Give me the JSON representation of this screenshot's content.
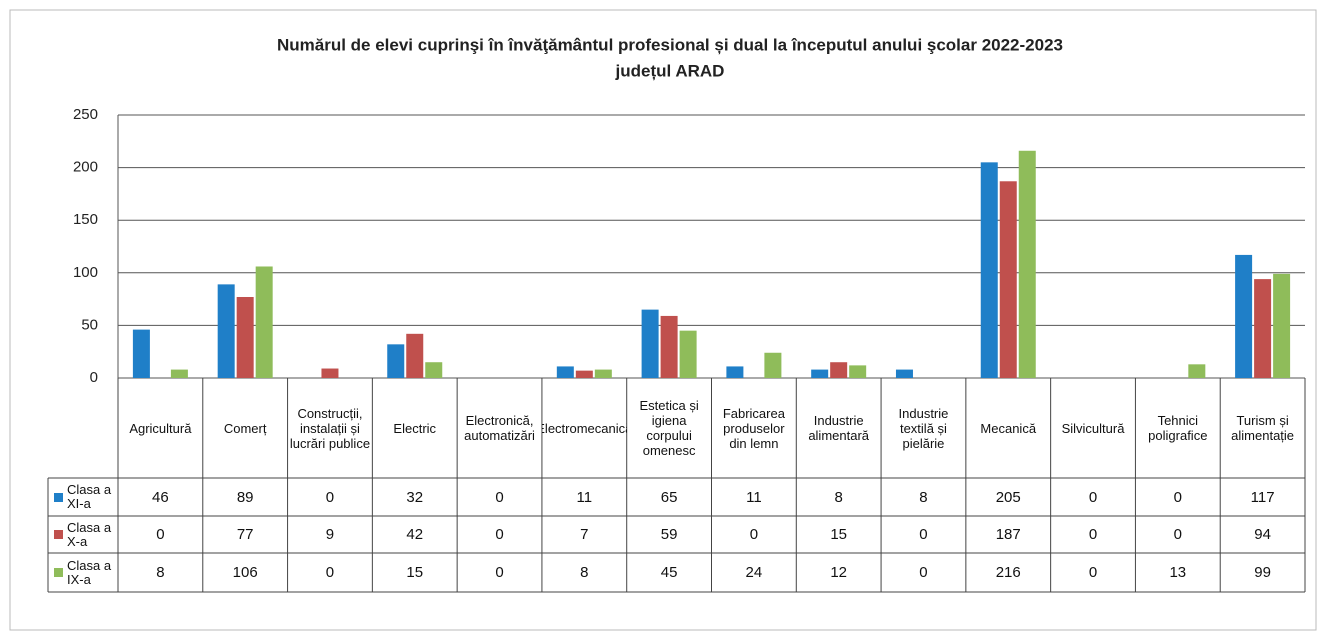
{
  "chart_data": {
    "type": "bar",
    "title": "Numărul de elevi cuprinşi în învăţământul profesional și dual la începutul anului şcolar 2022-2023",
    "subtitle": "județul ARAD",
    "categories": [
      "Agricultură",
      "Comerț",
      "Construcții, instalații și lucrări publice",
      "Electric",
      "Electronică, automatizări",
      "Electromecanică",
      "Estetica și igiena corpului omenesc",
      "Fabricarea produselor din lemn",
      "Industrie alimentară",
      "Industrie textilă și pielărie",
      "Mecanică",
      "Silvicultură",
      "Tehnici poligrafice",
      "Turism și alimentație"
    ],
    "series": [
      {
        "name": "Clasa a XI-a",
        "color": "#1f7fc8",
        "values": [
          46,
          89,
          0,
          32,
          0,
          11,
          65,
          11,
          8,
          8,
          205,
          0,
          0,
          117
        ]
      },
      {
        "name": "Clasa a X-a",
        "color": "#c0504d",
        "values": [
          0,
          77,
          9,
          42,
          0,
          7,
          59,
          0,
          15,
          0,
          187,
          0,
          0,
          94
        ]
      },
      {
        "name": "Clasa a IX-a",
        "color": "#8fbc5a",
        "values": [
          8,
          106,
          0,
          15,
          0,
          8,
          45,
          24,
          12,
          0,
          216,
          0,
          13,
          99
        ]
      }
    ],
    "ylim": [
      0,
      250
    ],
    "yticks": [
      0,
      50,
      100,
      150,
      200,
      250
    ],
    "grid": true
  }
}
